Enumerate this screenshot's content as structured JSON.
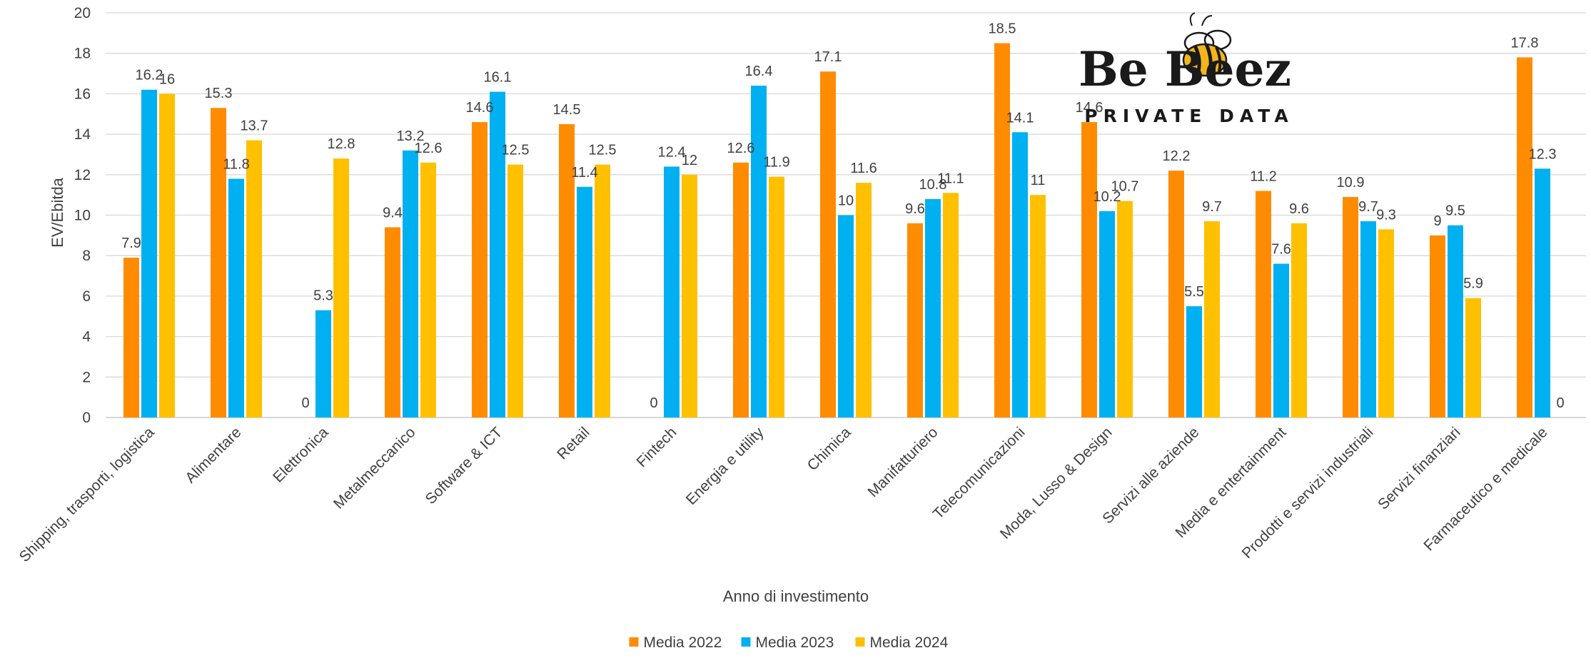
{
  "chart_data": {
    "type": "bar",
    "title": "",
    "xlabel": "Anno di investimento",
    "ylabel": "EV/Ebitda",
    "ylim": [
      0,
      20
    ],
    "yticks": [
      0,
      2,
      4,
      6,
      8,
      10,
      12,
      14,
      16,
      18,
      20
    ],
    "grid": true,
    "legend_position": "bottom-center",
    "categories": [
      "Shipping, trasporti, logistica",
      "Alimentare",
      "Elettronica",
      "Metalmeccanico",
      "Software & ICT",
      "Retail",
      "Fintech",
      "Energia e utility",
      "Chimica",
      "Manifatturiero",
      "Telecomunicazioni",
      "Moda, Lusso & Design",
      "Servizi alle aziende",
      "Media e entertainment",
      "Prodotti e servizi industriali",
      "Servizi finanziari",
      "Farmaceutico e medicale"
    ],
    "series": [
      {
        "name": "Media 2022",
        "color": "#FF8C00",
        "values": [
          7.9,
          15.3,
          0,
          9.4,
          14.6,
          14.5,
          0,
          12.6,
          17.1,
          9.6,
          18.5,
          14.6,
          12.2,
          11.2,
          10.9,
          9,
          17.8
        ],
        "labels": [
          "7.9",
          "15.3",
          "0",
          "9.4",
          "14.6",
          "14.5",
          "0",
          "12.6",
          "17.1",
          "9.6",
          "18.5",
          "14.6",
          "12.2",
          "11.2",
          "10.9",
          "9",
          "17.8"
        ]
      },
      {
        "name": "Media 2023",
        "color": "#00B0F0",
        "values": [
          16.2,
          11.8,
          5.3,
          13.2,
          16.1,
          11.4,
          12.4,
          16.4,
          10,
          10.8,
          14.1,
          10.2,
          5.5,
          7.6,
          9.7,
          9.5,
          12.3
        ],
        "labels": [
          "16.2",
          "11.8",
          "5.3",
          "13.2",
          "16.1",
          "11.4",
          "12.4",
          "16.4",
          "10",
          "10.8",
          "14.1",
          "10.2",
          "5.5",
          "7.6",
          "9.7",
          "9.5",
          "12.3"
        ]
      },
      {
        "name": "Media 2024",
        "color": "#FFC000",
        "values": [
          16,
          13.7,
          12.8,
          12.6,
          12.5,
          12.5,
          12,
          11.9,
          11.6,
          11.1,
          11,
          10.7,
          9.7,
          9.6,
          9.3,
          5.9,
          0
        ],
        "labels": [
          "16",
          "13.7",
          "12.8",
          "12.6",
          "12.5",
          "12.5",
          "12",
          "11.9",
          "11.6",
          "11.1",
          "11",
          "10.7",
          "9.7",
          "9.6",
          "9.3",
          "5.9",
          "0"
        ]
      }
    ]
  },
  "logo": {
    "text": "Be Beez",
    "subtitle": "PRIVATE DATA"
  }
}
